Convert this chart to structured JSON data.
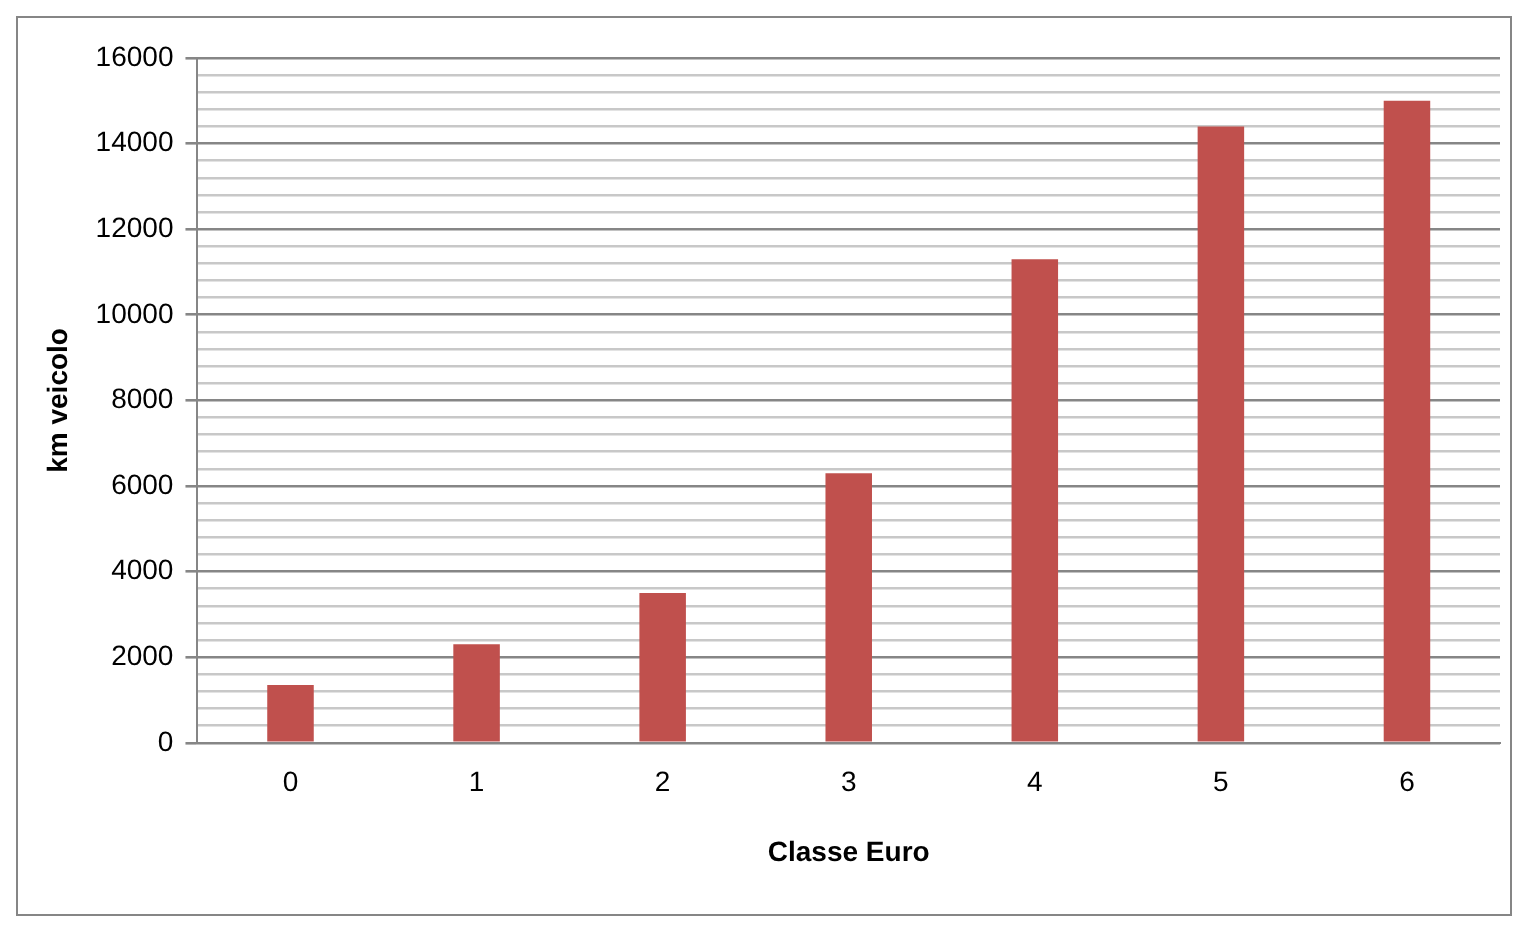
{
  "chart_data": {
    "type": "bar",
    "xlabel": "Classe Euro",
    "ylabel": "km veicolo",
    "categories": [
      "0",
      "1",
      "2",
      "3",
      "4",
      "5",
      "6"
    ],
    "series": [
      {
        "color": "#c0504d",
        "values": [
          1350,
          2300,
          3500,
          6300,
          11300,
          14400,
          15000
        ]
      }
    ],
    "ylim": [
      0,
      16000
    ],
    "yticks": [
      0,
      {
        "value": 400,
        "label": null
      },
      {
        "value": 800,
        "label": null
      },
      {
        "value": 1200,
        "label": null
      },
      {
        "value": 1600,
        "label": null
      },
      2000,
      {
        "value": 2400,
        "label": null
      },
      {
        "value": 2800,
        "label": null
      },
      {
        "value": 3200,
        "label": null
      },
      {
        "value": 3600,
        "label": null
      },
      4000,
      {
        "value": 4400,
        "label": null
      },
      {
        "value": 4800,
        "label": null
      },
      {
        "value": 5200,
        "label": null
      },
      {
        "value": 5600,
        "label": null
      },
      6000,
      {
        "value": 6400,
        "label": null
      },
      {
        "value": 6800,
        "label": null
      },
      {
        "value": 7200,
        "label": null
      },
      {
        "value": 7600,
        "label": null
      },
      8000,
      {
        "value": 8400,
        "label": null
      },
      {
        "value": 8800,
        "label": null
      },
      {
        "value": 9200,
        "label": null
      },
      {
        "value": 9600,
        "label": null
      },
      10000,
      {
        "value": 10400,
        "label": null
      },
      {
        "value": 10800,
        "label": null
      },
      {
        "value": 11200,
        "label": null
      },
      {
        "value": 11600,
        "label": null
      },
      12000,
      {
        "value": 12400,
        "label": null
      },
      {
        "value": 12800,
        "label": null
      },
      {
        "value": 13200,
        "label": null
      },
      {
        "value": 13600,
        "label": null
      },
      14000,
      {
        "value": 14400,
        "label": null
      },
      {
        "value": 14800,
        "label": null
      },
      {
        "value": 15200,
        "label": null
      },
      {
        "value": 15600,
        "label": null
      },
      16000
    ],
    "grid": "y",
    "legend": false
  }
}
